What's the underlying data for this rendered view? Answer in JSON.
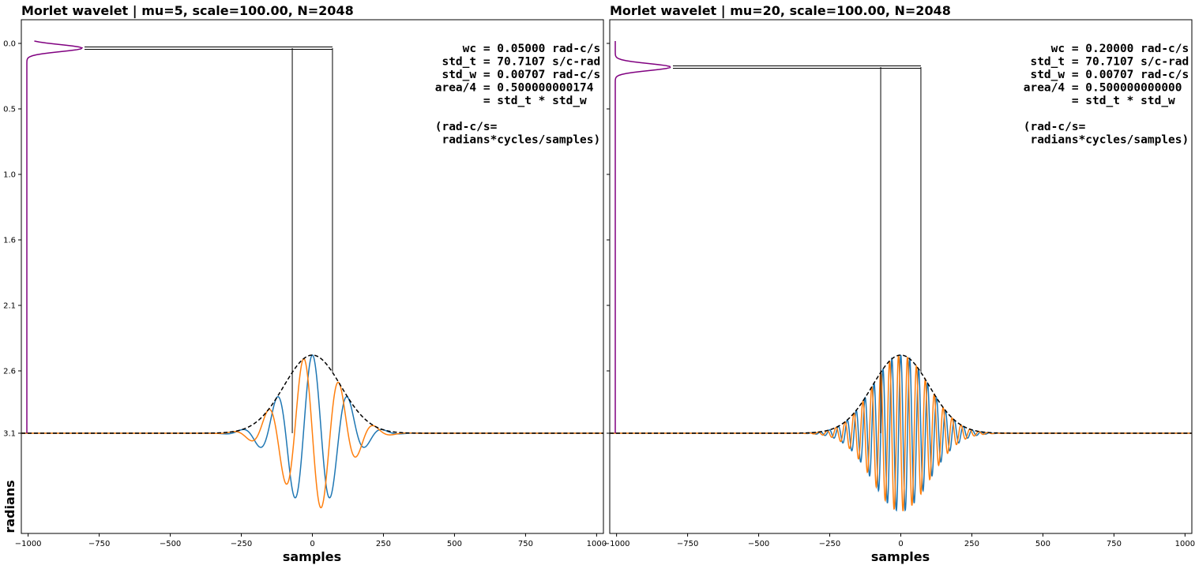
{
  "figure": {
    "ylabel": "radians",
    "colors": {
      "real": "#1f77b4",
      "imag": "#ff7f0e",
      "envelope": "#000000",
      "freq": "#800080",
      "box": "#000000"
    }
  },
  "chart_data": [
    {
      "type": "line",
      "title": "Morlet wavelet | mu=5, scale=100.00, N=2048",
      "xlabel": "samples",
      "ylabel": "radians",
      "xlim": [
        -1024,
        1024
      ],
      "x_ticks": [
        -1000,
        -750,
        -500,
        -250,
        0,
        250,
        500,
        750,
        1000
      ],
      "y_ticks": [
        "0.0",
        "0.5",
        "1.0",
        "1.6",
        "2.1",
        "2.6",
        "3.1"
      ],
      "mu": 5,
      "scale": 100,
      "N": 2048,
      "std_t": 70.7107,
      "wc": 0.05,
      "series": [
        {
          "kind": "real"
        },
        {
          "kind": "imag"
        },
        {
          "kind": "envelope"
        },
        {
          "kind": "freq"
        }
      ],
      "annotation": [
        "     wc = 0.05000 rad-c/s",
        "  std_t = 70.7107 s/c-rad",
        "  std_w = 0.00707 rad-c/s",
        " area/4 = 0.500000000174",
        "        = std_t * std_w",
        "",
        " (rad-c/s=",
        "  radians*cycles/samples)"
      ]
    },
    {
      "type": "line",
      "title": "Morlet wavelet | mu=20, scale=100.00, N=2048",
      "xlabel": "samples",
      "ylabel": "",
      "xlim": [
        -1024,
        1024
      ],
      "x_ticks": [
        -1000,
        -750,
        -500,
        -250,
        0,
        250,
        500,
        750,
        1000
      ],
      "y_ticks": [
        "",
        "",
        "",
        "",
        "",
        "",
        ""
      ],
      "mu": 20,
      "scale": 100,
      "N": 2048,
      "std_t": 70.7107,
      "wc": 0.2,
      "series": [
        {
          "kind": "real"
        },
        {
          "kind": "imag"
        },
        {
          "kind": "envelope"
        },
        {
          "kind": "freq"
        }
      ],
      "annotation": [
        "     wc = 0.20000 rad-c/s",
        "  std_t = 70.7107 s/c-rad",
        "  std_w = 0.00707 rad-c/s",
        " area/4 = 0.500000000000",
        "        = std_t * std_w",
        "",
        " (rad-c/s=",
        "  radians*cycles/samples)"
      ]
    }
  ]
}
